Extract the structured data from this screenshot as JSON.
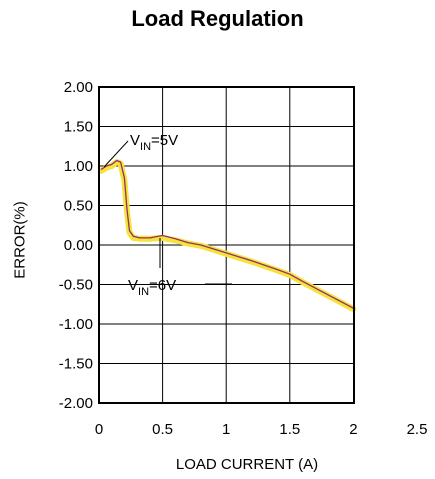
{
  "chart_data": {
    "type": "line",
    "title": "Load Regulation",
    "xlabel": "LOAD CURRENT (A)",
    "ylabel": "ERROR(%)",
    "xlim": [
      0,
      2.5
    ],
    "ylim": [
      -2.0,
      2.0
    ],
    "x_ticks": [
      "0",
      "0.5",
      "1",
      "1.5",
      "2",
      "2.5"
    ],
    "y_ticks": [
      "2.00",
      "1.50",
      "1.00",
      "0.50",
      "0.00",
      "-0.50",
      "-1.00",
      "-1.50",
      "-2.00"
    ],
    "grid": true,
    "series": [
      {
        "name": "VIN=5V",
        "color": "#9b2a6e",
        "x": [
          0.02,
          0.06,
          0.1,
          0.14,
          0.17,
          0.2,
          0.22,
          0.24,
          0.27,
          0.32,
          0.4,
          0.5,
          0.6,
          0.7,
          0.8,
          1.0,
          1.2,
          1.4,
          1.5,
          1.6,
          1.8,
          2.0
        ],
        "y": [
          0.96,
          1.0,
          1.02,
          1.07,
          1.05,
          0.85,
          0.45,
          0.18,
          0.11,
          0.09,
          0.09,
          0.12,
          0.08,
          0.03,
          0.0,
          -0.1,
          -0.2,
          -0.31,
          -0.37,
          -0.46,
          -0.63,
          -0.8
        ]
      },
      {
        "name": "VIN=6V",
        "color": "#f2e43a",
        "x": [
          0.02,
          0.06,
          0.1,
          0.14,
          0.17,
          0.2,
          0.22,
          0.24,
          0.27,
          0.32,
          0.4,
          0.5,
          0.6,
          0.7,
          0.8,
          1.0,
          1.2,
          1.4,
          1.5,
          1.6,
          1.8,
          2.0
        ],
        "y": [
          0.94,
          0.98,
          1.0,
          1.05,
          1.03,
          0.82,
          0.42,
          0.16,
          0.09,
          0.08,
          0.08,
          0.09,
          0.06,
          0.02,
          -0.01,
          -0.11,
          -0.21,
          -0.32,
          -0.38,
          -0.47,
          -0.64,
          -0.81
        ]
      }
    ],
    "annotations": [
      {
        "sub_prefix": "V",
        "sub": "IN",
        "suffix": "=5V"
      },
      {
        "sub_prefix": "V",
        "sub": "IN",
        "suffix": "=6V"
      }
    ]
  }
}
